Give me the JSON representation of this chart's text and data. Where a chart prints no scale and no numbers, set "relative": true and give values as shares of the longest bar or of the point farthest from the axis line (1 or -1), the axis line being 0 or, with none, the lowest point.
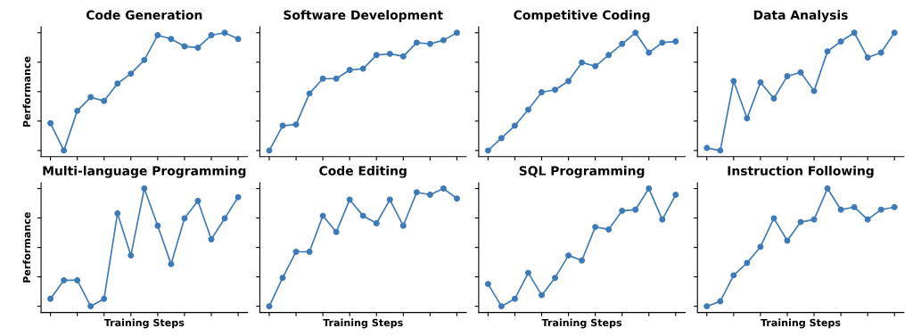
{
  "chart_data": [
    {
      "type": "line",
      "title": "Code Generation",
      "ylabel": "Performance",
      "relative": true,
      "tick_labels": false,
      "marker": "circle",
      "grid": false,
      "categories": [
        null,
        null,
        null,
        null,
        null,
        null,
        null,
        null,
        null,
        null,
        null,
        null,
        null,
        null,
        null
      ],
      "series": [
        {
          "color": "#3d7ab8",
          "values": [
            0.27,
            0.05,
            0.37,
            0.48,
            0.45,
            0.59,
            0.67,
            0.78,
            0.98,
            0.95,
            0.89,
            0.88,
            0.98,
            1,
            0.95
          ]
        }
      ]
    },
    {
      "type": "line",
      "title": "Software Development",
      "relative": true,
      "tick_labels": false,
      "marker": "circle",
      "grid": false,
      "categories": [
        null,
        null,
        null,
        null,
        null,
        null,
        null,
        null,
        null,
        null,
        null,
        null,
        null,
        null,
        null
      ],
      "series": [
        {
          "color": "#3d7ab8",
          "values": [
            0.05,
            0.25,
            0.26,
            0.51,
            0.63,
            0.63,
            0.7,
            0.71,
            0.82,
            0.83,
            0.81,
            0.92,
            0.91,
            0.94,
            1
          ]
        }
      ]
    },
    {
      "type": "line",
      "title": "Competitive Coding",
      "relative": true,
      "tick_labels": false,
      "marker": "circle",
      "grid": false,
      "categories": [
        null,
        null,
        null,
        null,
        null,
        null,
        null,
        null,
        null,
        null,
        null,
        null,
        null,
        null,
        null
      ],
      "series": [
        {
          "color": "#3d7ab8",
          "values": [
            0.05,
            0.15,
            0.25,
            0.38,
            0.52,
            0.54,
            0.61,
            0.76,
            0.73,
            0.82,
            0.91,
            1,
            0.84,
            0.92,
            0.93
          ]
        }
      ]
    },
    {
      "type": "line",
      "title": "Data Analysis",
      "relative": true,
      "tick_labels": false,
      "marker": "circle",
      "grid": false,
      "categories": [
        null,
        null,
        null,
        null,
        null,
        null,
        null,
        null,
        null,
        null,
        null,
        null,
        null,
        null,
        null
      ],
      "series": [
        {
          "color": "#3d7ab8",
          "values": [
            0.07,
            0.05,
            0.61,
            0.31,
            0.6,
            0.47,
            0.65,
            0.68,
            0.53,
            0.85,
            0.93,
            1,
            0.8,
            0.84,
            1
          ]
        }
      ]
    },
    {
      "type": "line",
      "title": "Multi-language Programming",
      "xlabel": "Training Steps",
      "ylabel": "Performance",
      "relative": true,
      "tick_labels": false,
      "marker": "circle",
      "grid": false,
      "categories": [
        null,
        null,
        null,
        null,
        null,
        null,
        null,
        null,
        null,
        null,
        null,
        null,
        null,
        null,
        null
      ],
      "series": [
        {
          "color": "#3d7ab8",
          "values": [
            0.11,
            0.26,
            0.26,
            0.05,
            0.11,
            0.8,
            0.46,
            1,
            0.7,
            0.39,
            0.76,
            0.9,
            0.59,
            0.76,
            0.93
          ]
        }
      ]
    },
    {
      "type": "line",
      "title": "Code Editing",
      "xlabel": "Training Steps",
      "relative": true,
      "tick_labels": false,
      "marker": "circle",
      "grid": false,
      "categories": [
        null,
        null,
        null,
        null,
        null,
        null,
        null,
        null,
        null,
        null,
        null,
        null,
        null,
        null,
        null
      ],
      "series": [
        {
          "color": "#3d7ab8",
          "values": [
            0.05,
            0.28,
            0.49,
            0.49,
            0.78,
            0.65,
            0.91,
            0.78,
            0.72,
            0.91,
            0.7,
            0.97,
            0.95,
            1,
            0.92
          ]
        }
      ]
    },
    {
      "type": "line",
      "title": "SQL Programming",
      "xlabel": "Training Steps",
      "relative": true,
      "tick_labels": false,
      "marker": "circle",
      "grid": false,
      "categories": [
        null,
        null,
        null,
        null,
        null,
        null,
        null,
        null,
        null,
        null,
        null,
        null,
        null,
        null,
        null
      ],
      "series": [
        {
          "color": "#3d7ab8",
          "values": [
            0.23,
            0.05,
            0.11,
            0.32,
            0.14,
            0.28,
            0.46,
            0.42,
            0.69,
            0.67,
            0.82,
            0.83,
            1,
            0.75,
            0.95
          ]
        }
      ]
    },
    {
      "type": "line",
      "title": "Instruction Following",
      "xlabel": "Training Steps",
      "relative": true,
      "tick_labels": false,
      "marker": "circle",
      "grid": false,
      "categories": [
        null,
        null,
        null,
        null,
        null,
        null,
        null,
        null,
        null,
        null,
        null,
        null,
        null,
        null,
        null
      ],
      "series": [
        {
          "color": "#3d7ab8",
          "values": [
            0.05,
            0.09,
            0.3,
            0.4,
            0.53,
            0.76,
            0.58,
            0.73,
            0.75,
            1,
            0.83,
            0.85,
            0.75,
            0.83,
            0.85
          ]
        }
      ]
    }
  ]
}
